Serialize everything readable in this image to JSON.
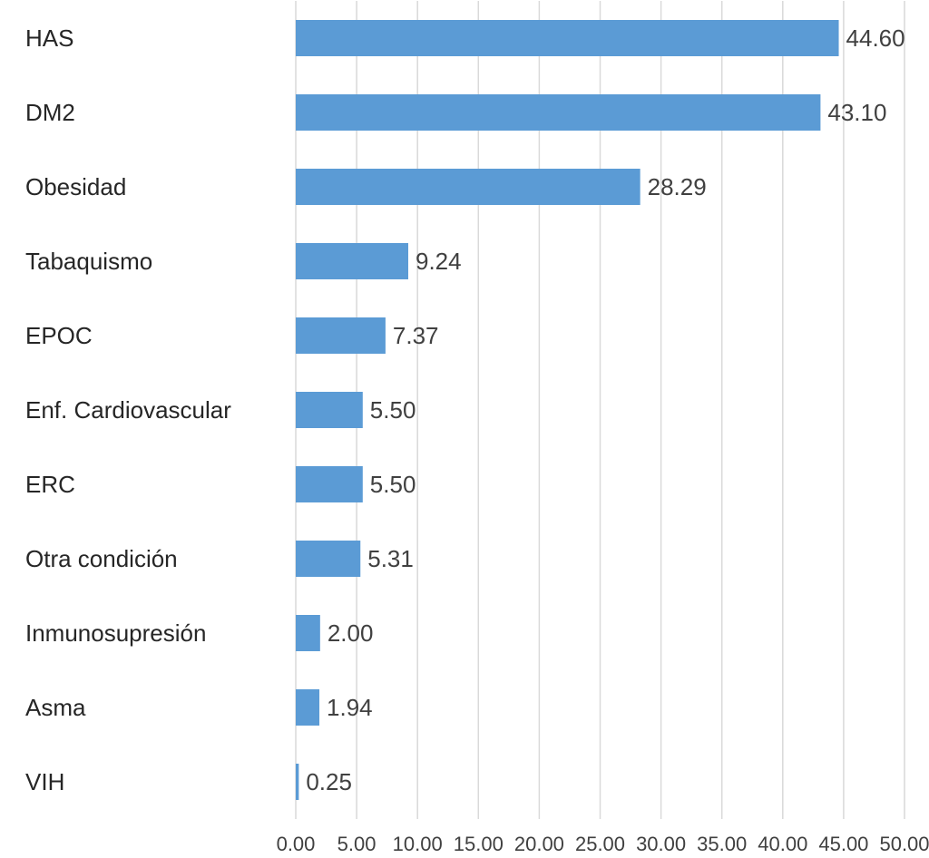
{
  "chart_data": {
    "type": "bar",
    "orientation": "horizontal",
    "categories": [
      "HAS",
      "DM2",
      "Obesidad",
      "Tabaquismo",
      "EPOC",
      "Enf. Cardiovascular",
      "ERC",
      "Otra condición",
      "Inmunosupresión",
      "Asma",
      "VIH"
    ],
    "values": [
      44.6,
      43.1,
      28.29,
      9.24,
      7.37,
      5.5,
      5.5,
      5.31,
      2.0,
      1.94,
      0.25
    ],
    "value_labels": [
      "44.60",
      "43.10",
      "28.29",
      "9.24",
      "7.37",
      "5.50",
      "5.50",
      "5.31",
      "2.00",
      "1.94",
      "0.25"
    ],
    "color": "#5b9bd5",
    "xlim": [
      0,
      50
    ],
    "xticks": [
      {
        "value": 0,
        "label": "0.00"
      },
      {
        "value": 5,
        "label": "5.00"
      },
      {
        "value": 10,
        "label": "10.00"
      },
      {
        "value": 15,
        "label": "15.00"
      },
      {
        "value": 20,
        "label": "20.00"
      },
      {
        "value": 25,
        "label": "25.00"
      },
      {
        "value": 30,
        "label": "30.00"
      },
      {
        "value": 35,
        "label": "35.00"
      },
      {
        "value": 40,
        "label": "40.00"
      },
      {
        "value": 45,
        "label": "45.00"
      },
      {
        "value": 50,
        "label": "50.00"
      }
    ],
    "grid": true
  }
}
